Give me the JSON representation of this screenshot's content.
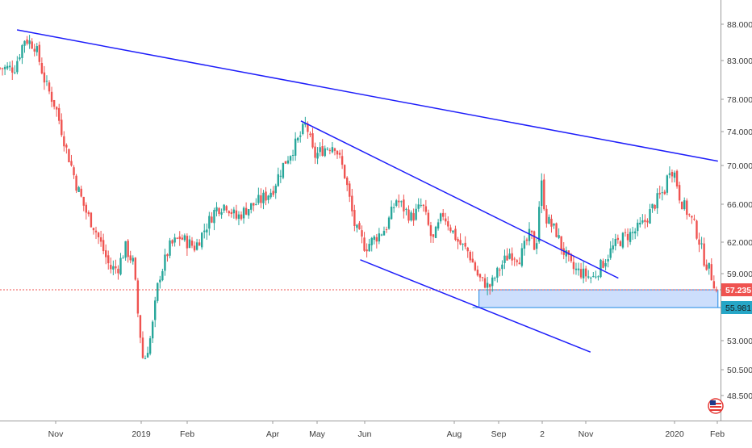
{
  "chart_data": {
    "type": "candlestick",
    "title": "",
    "xlabel": "",
    "ylabel": "",
    "ylim": [
      46.5,
      91.0
    ],
    "y_scale": "log",
    "grid": false,
    "x_ticks": [
      "Nov",
      "2019",
      "Feb",
      "Apr",
      "May",
      "Jun",
      "Aug",
      "Sep",
      "2",
      "Nov",
      "2020",
      "Feb"
    ],
    "y_ticks": [
      "88.000",
      "83.000",
      "78.000",
      "74.000",
      "70.000",
      "66.000",
      "62.000",
      "59.000",
      "53.000",
      "50.500",
      "48.500"
    ],
    "price_labels": {
      "last": "57.235",
      "zone": "55.981"
    },
    "close_path": [
      [
        2018.75,
        82.0
      ],
      [
        2018.77,
        86.0
      ],
      [
        2018.79,
        85.0
      ],
      [
        2018.81,
        80.0
      ],
      [
        2018.83,
        77.0
      ],
      [
        2018.85,
        72.0
      ],
      [
        2018.87,
        68.0
      ],
      [
        2018.89,
        65.0
      ],
      [
        2018.905,
        63.5
      ],
      [
        2018.92,
        61.5
      ],
      [
        2018.935,
        59.5
      ],
      [
        2018.95,
        59.5
      ],
      [
        2018.965,
        61.5
      ],
      [
        2018.98,
        60.0
      ],
      [
        2018.99,
        55.0
      ],
      [
        2019.0,
        51.0
      ],
      [
        2019.015,
        53.5
      ],
      [
        2019.03,
        58.5
      ],
      [
        2019.05,
        61.5
      ],
      [
        2019.07,
        62.5
      ],
      [
        2019.1,
        61.5
      ],
      [
        2019.12,
        63.5
      ],
      [
        2019.14,
        65.5
      ],
      [
        2019.16,
        66.0
      ],
      [
        2019.18,
        64.5
      ],
      [
        2019.2,
        65.5
      ],
      [
        2019.23,
        66.5
      ],
      [
        2019.25,
        67.5
      ],
      [
        2019.27,
        70.0
      ],
      [
        2019.29,
        72.0
      ],
      [
        2019.3,
        73.0
      ],
      [
        2019.315,
        75.0
      ],
      [
        2019.33,
        71.0
      ],
      [
        2019.35,
        72.0
      ],
      [
        2019.37,
        72.5
      ],
      [
        2019.39,
        69.0
      ],
      [
        2019.41,
        63.5
      ],
      [
        2019.43,
        61.5
      ],
      [
        2019.45,
        62.5
      ],
      [
        2019.47,
        63.5
      ],
      [
        2019.49,
        66.5
      ],
      [
        2019.52,
        64.5
      ],
      [
        2019.54,
        66.0
      ],
      [
        2019.56,
        62.0
      ],
      [
        2019.58,
        65.0
      ],
      [
        2019.61,
        62.0
      ],
      [
        2019.63,
        61.0
      ],
      [
        2019.65,
        58.5
      ],
      [
        2019.67,
        57.5
      ],
      [
        2019.69,
        59.5
      ],
      [
        2019.71,
        61.0
      ],
      [
        2019.73,
        60.5
      ],
      [
        2019.75,
        63.0
      ],
      [
        2019.76,
        61.0
      ],
      [
        2019.77,
        68.5
      ],
      [
        2019.78,
        64.5
      ],
      [
        2019.8,
        63.0
      ],
      [
        2019.81,
        61.5
      ],
      [
        2019.83,
        59.5
      ],
      [
        2019.85,
        59.0
      ],
      [
        2019.87,
        58.5
      ],
      [
        2019.89,
        60.0
      ],
      [
        2019.91,
        61.5
      ],
      [
        2019.93,
        62.5
      ],
      [
        2019.95,
        63.0
      ],
      [
        2019.97,
        64.0
      ],
      [
        2019.99,
        66.0
      ],
      [
        2020.01,
        67.5
      ],
      [
        2020.02,
        70.0
      ],
      [
        2020.03,
        69.0
      ],
      [
        2020.04,
        66.5
      ],
      [
        2020.055,
        65.0
      ],
      [
        2020.065,
        64.0
      ],
      [
        2020.075,
        62.5
      ],
      [
        2020.085,
        60.5
      ],
      [
        2020.095,
        59.5
      ],
      [
        2020.105,
        58.0
      ],
      [
        2020.11,
        57.235
      ]
    ],
    "trendlines": [
      {
        "name": "upper-trendline",
        "from": [
          2018.755,
          87.2
        ],
        "to": [
          2020.113,
          70.5
        ],
        "color": "#1e1efa"
      },
      {
        "name": "channel-upper-line",
        "from": [
          2019.305,
          75.3
        ],
        "to": [
          2019.92,
          58.5
        ],
        "color": "#1e1efa"
      },
      {
        "name": "channel-lower-line",
        "from": [
          2019.42,
          60.3
        ],
        "to": [
          2019.866,
          52.0
        ],
        "color": "#1e1efa"
      }
    ],
    "zone": {
      "from_x": 2019.65,
      "to_x": 2020.113,
      "y_top": 57.235,
      "y_bottom": 55.981
    }
  },
  "colors": {
    "up": "#26a69a",
    "down": "#ef5350",
    "trendline": "#1e1efa",
    "zone_fill": "#c6dafc",
    "zone_border": "#1e88e5",
    "last_price_line": "#ef5350",
    "last_price_label_bg": "#ef5350",
    "zone_label_bg": "#26a6c6",
    "axis_text": "#3d3d3d",
    "axis_line": "#9b9b9b"
  },
  "icons": {
    "corner_badge": "us-flag-icon"
  }
}
